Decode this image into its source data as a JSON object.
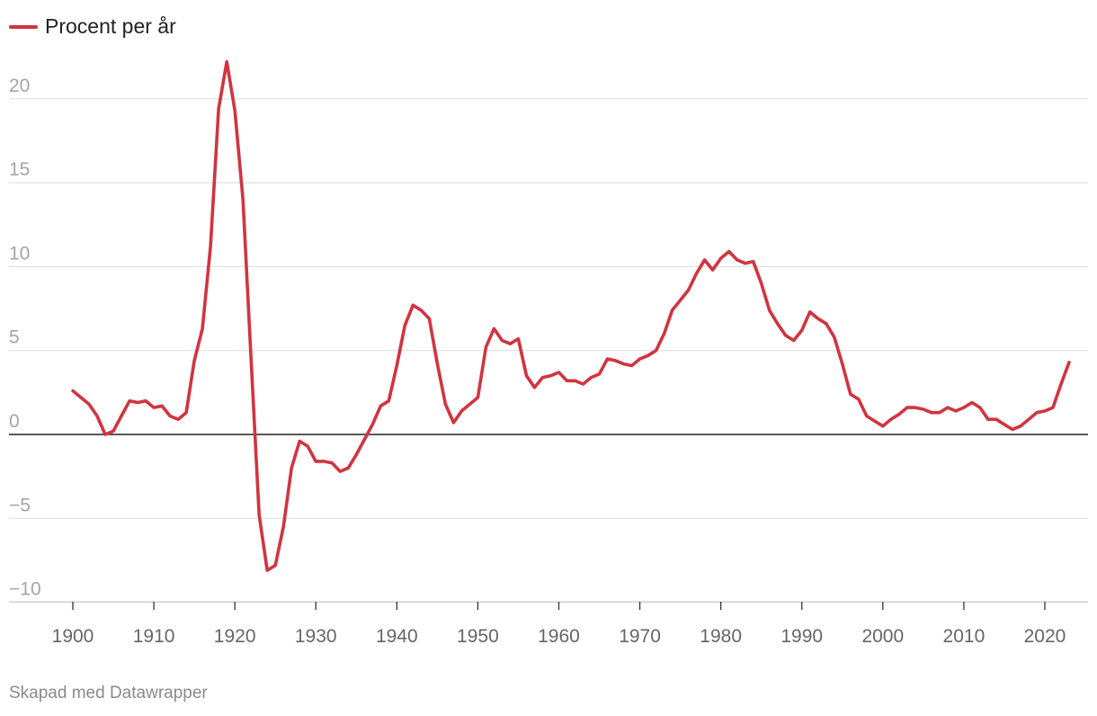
{
  "footer": {
    "credit": "Skapad med Datawrapper"
  },
  "chart_data": {
    "type": "line",
    "title": "",
    "xlabel": "",
    "ylabel": "",
    "grid": true,
    "legend": "top-left",
    "xlim": [
      1900,
      2023
    ],
    "ylim": [
      -10,
      22
    ],
    "y_ticks": [
      20,
      15,
      10,
      5,
      0,
      -5,
      -10
    ],
    "y_tick_labels": [
      "20",
      "15",
      "10",
      "5",
      "0",
      "−5",
      "−10"
    ],
    "x_ticks": [
      1900,
      1910,
      1920,
      1930,
      1940,
      1950,
      1960,
      1970,
      1980,
      1990,
      2000,
      2010,
      2020
    ],
    "series": [
      {
        "name": "Procent per år",
        "color": "#d1343f",
        "x": [
          1900,
          1901,
          1902,
          1903,
          1904,
          1905,
          1906,
          1907,
          1908,
          1909,
          1910,
          1911,
          1912,
          1913,
          1914,
          1915,
          1916,
          1917,
          1918,
          1919,
          1920,
          1921,
          1922,
          1923,
          1924,
          1925,
          1926,
          1927,
          1928,
          1929,
          1930,
          1931,
          1932,
          1933,
          1934,
          1935,
          1936,
          1937,
          1938,
          1939,
          1940,
          1941,
          1942,
          1943,
          1944,
          1945,
          1946,
          1947,
          1948,
          1949,
          1950,
          1951,
          1952,
          1953,
          1954,
          1955,
          1956,
          1957,
          1958,
          1959,
          1960,
          1961,
          1962,
          1963,
          1964,
          1965,
          1966,
          1967,
          1968,
          1969,
          1970,
          1971,
          1972,
          1973,
          1974,
          1975,
          1976,
          1977,
          1978,
          1979,
          1980,
          1981,
          1982,
          1983,
          1984,
          1985,
          1986,
          1987,
          1988,
          1989,
          1990,
          1991,
          1992,
          1993,
          1994,
          1995,
          1996,
          1997,
          1998,
          1999,
          2000,
          2001,
          2002,
          2003,
          2004,
          2005,
          2006,
          2007,
          2008,
          2009,
          2010,
          2011,
          2012,
          2013,
          2014,
          2015,
          2016,
          2017,
          2018,
          2019,
          2020,
          2021,
          2022,
          2023
        ],
        "values": [
          2.6,
          2.2,
          1.8,
          1.1,
          0.0,
          0.2,
          1.1,
          2.0,
          1.9,
          2.0,
          1.6,
          1.7,
          1.1,
          0.9,
          1.3,
          4.4,
          6.3,
          11.2,
          19.4,
          22.2,
          19.3,
          14.0,
          4.5,
          -4.8,
          -8.1,
          -7.8,
          -5.5,
          -2.0,
          -0.4,
          -0.7,
          -1.6,
          -1.6,
          -1.7,
          -2.2,
          -2.0,
          -1.2,
          -0.3,
          0.6,
          1.7,
          2.0,
          4.1,
          6.5,
          7.7,
          7.4,
          6.9,
          4.2,
          1.8,
          0.7,
          1.4,
          1.8,
          2.2,
          5.2,
          6.3,
          5.6,
          5.4,
          5.7,
          3.5,
          2.8,
          3.4,
          3.5,
          3.7,
          3.2,
          3.2,
          3.0,
          3.4,
          3.6,
          4.5,
          4.4,
          4.2,
          4.1,
          4.5,
          4.7,
          5.0,
          6.0,
          7.4,
          8.0,
          8.6,
          9.6,
          10.4,
          9.8,
          10.5,
          10.9,
          10.4,
          10.2,
          10.3,
          9.0,
          7.4,
          6.6,
          5.9,
          5.6,
          6.2,
          7.3,
          6.9,
          6.6,
          5.8,
          4.2,
          2.4,
          2.1,
          1.1,
          0.8,
          0.5,
          0.9,
          1.2,
          1.6,
          1.6,
          1.5,
          1.3,
          1.3,
          1.6,
          1.4,
          1.6,
          1.9,
          1.6,
          0.9,
          0.9,
          0.6,
          0.3,
          0.5,
          0.9,
          1.3,
          1.4,
          1.6,
          3.0,
          4.3
        ]
      }
    ]
  }
}
